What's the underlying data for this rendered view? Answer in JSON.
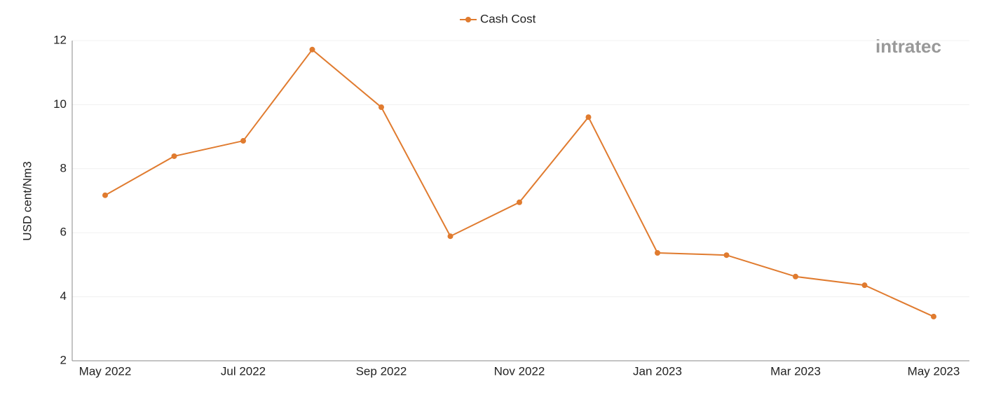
{
  "chart_data": {
    "type": "line",
    "y_label": "USD cent/Nm3",
    "watermark": "intratec",
    "categories": [
      "May 2022",
      null,
      "Jul 2022",
      null,
      "Sep 2022",
      null,
      "Nov 2022",
      null,
      "Jan 2023",
      null,
      "Mar 2023",
      null,
      "May 2023"
    ],
    "series": [
      {
        "name": "Cash Cost",
        "color": "#e07b2f",
        "values": [
          7.17,
          8.39,
          8.87,
          11.72,
          9.92,
          5.89,
          6.95,
          9.61,
          5.37,
          5.3,
          4.63,
          4.36,
          3.38
        ]
      }
    ],
    "ylim": [
      2,
      12
    ],
    "yticks": [
      2,
      4,
      6,
      8,
      10,
      12
    ],
    "grid": true,
    "legend": "top"
  }
}
